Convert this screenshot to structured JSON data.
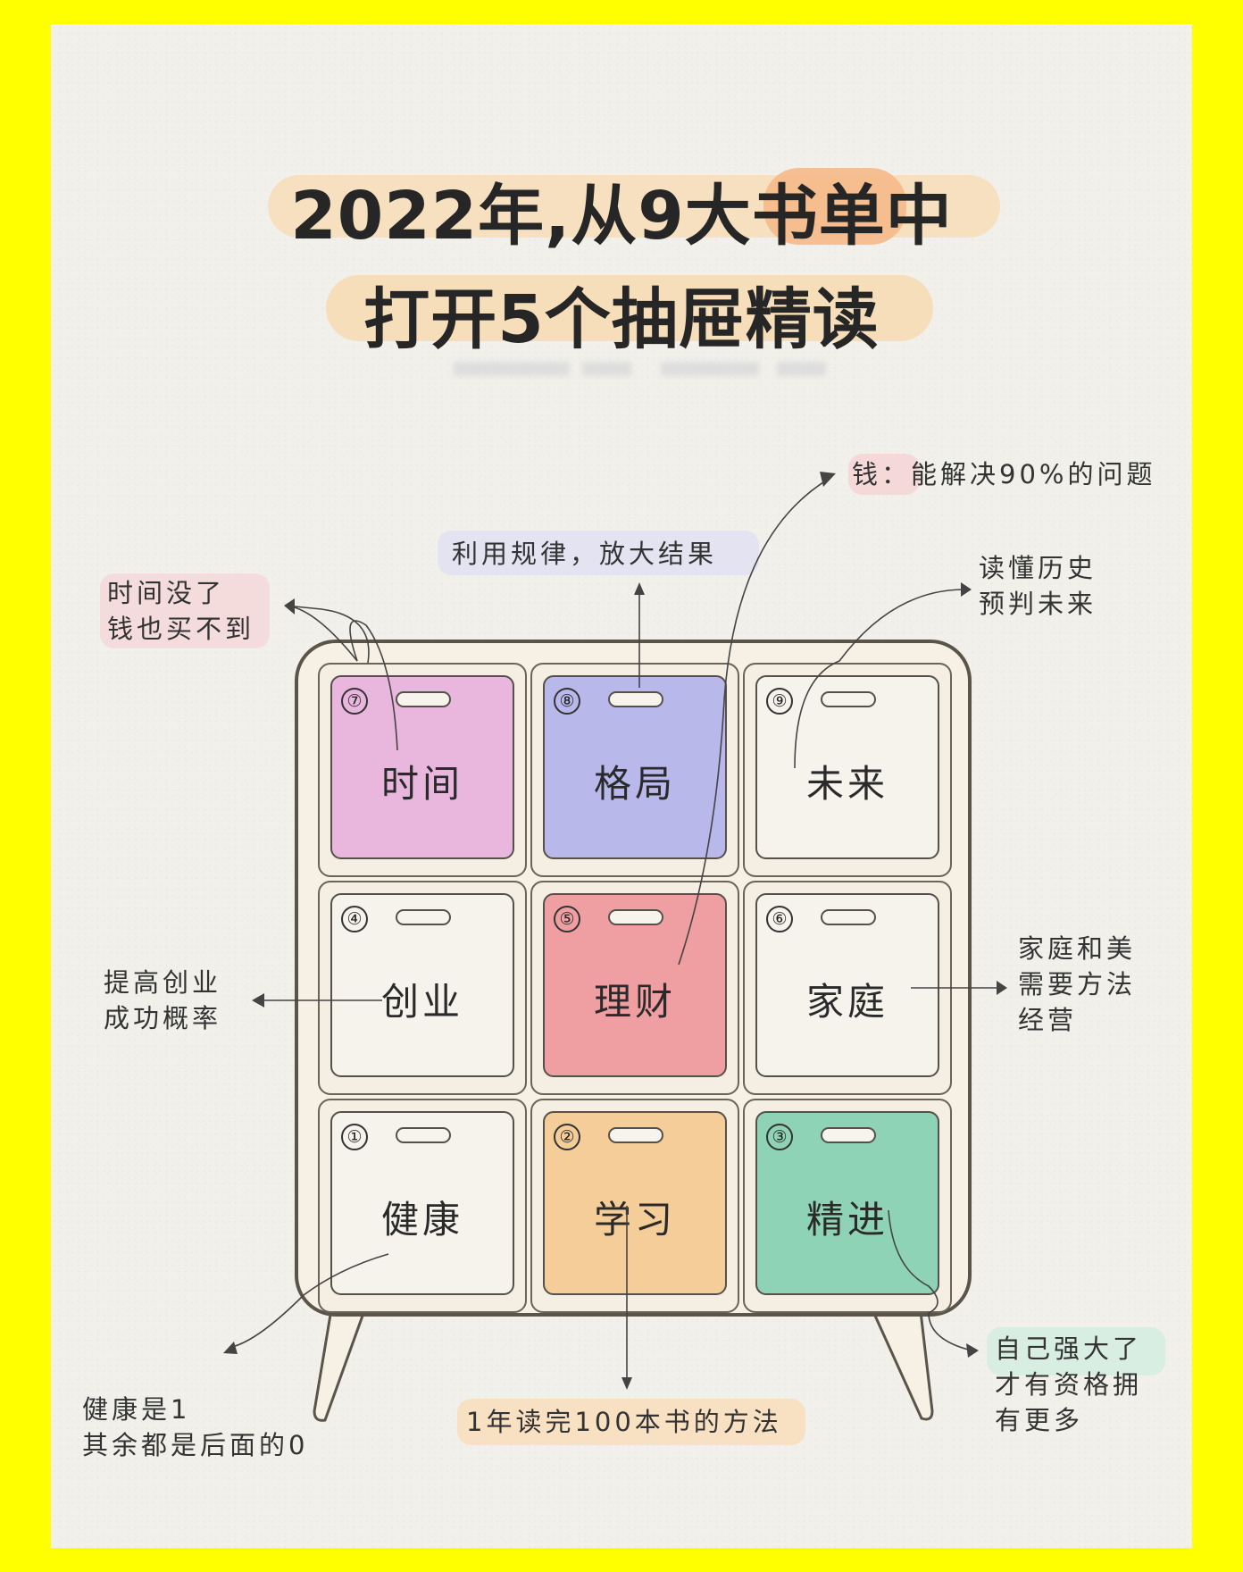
{
  "title": {
    "line1": "2022年,从9大书单中",
    "line2": "打开5个抽屉精读"
  },
  "drawers": [
    {
      "num": "⑦",
      "label": "时间",
      "color": "#e9b7dd"
    },
    {
      "num": "⑧",
      "label": "格局",
      "color": "#b8b8ea"
    },
    {
      "num": "⑨",
      "label": "未来",
      "color": "#f6f3ec"
    },
    {
      "num": "④",
      "label": "创业",
      "color": "#f6f3ec"
    },
    {
      "num": "⑤",
      "label": "理财",
      "color": "#ef9fa1"
    },
    {
      "num": "⑥",
      "label": "家庭",
      "color": "#f6f3ec"
    },
    {
      "num": "①",
      "label": "健康",
      "color": "#f6f3ec"
    },
    {
      "num": "②",
      "label": "学习",
      "color": "#f4cd98"
    },
    {
      "num": "③",
      "label": "精进",
      "color": "#8fd3b6"
    }
  ],
  "notes": {
    "money": "钱：能解决90%的问题",
    "pattern": "利用规律，放大结果",
    "time": "时间没了\n钱也买不到",
    "future": "读懂历史\n预判未来",
    "startup": "提高创业\n成功概率",
    "family": "家庭和美\n需要方法\n经营",
    "health": "健康是1\n其余都是后面的0",
    "learn": "1年读完100本书的方法",
    "improve": "自己强大了\n才有资格拥\n有更多"
  },
  "colors": {
    "border": "#ffff00",
    "paper": "#f1f0ea",
    "title_highlight": "#f6c88e",
    "note_pink": "#f5dcdc",
    "note_lavender": "#e3e3f2",
    "note_peach": "#f8e2c6",
    "note_mint": "#d9efe4"
  }
}
